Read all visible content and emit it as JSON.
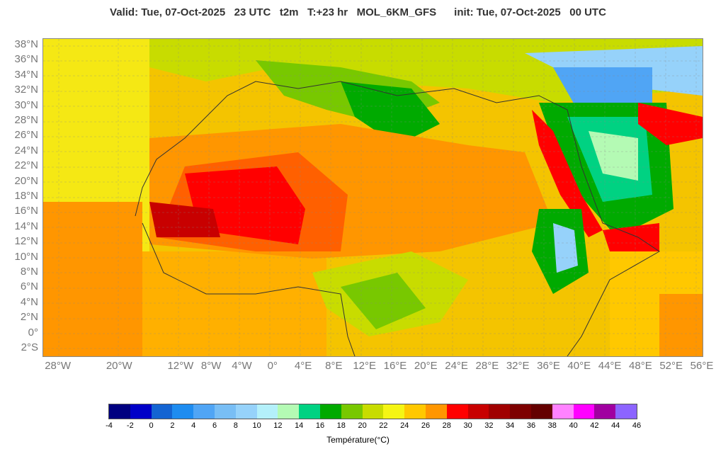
{
  "header": {
    "title": "Valid: Tue, 07-Oct-2025   23 UTC   t2m   T:+23 hr   MOL_6KM_GFS      init: Tue, 07-Oct-2025   00 UTC"
  },
  "map": {
    "lat_labels": [
      "38°N",
      "36°N",
      "34°N",
      "32°N",
      "30°N",
      "28°N",
      "26°N",
      "24°N",
      "22°N",
      "20°N",
      "18°N",
      "16°N",
      "14°N",
      "12°N",
      "10°N",
      "8°N",
      "6°N",
      "4°N",
      "2°N",
      "0°",
      "2°S"
    ],
    "lon_labels": [
      "28°W",
      "20°W",
      "12°W",
      "8°W",
      "4°W",
      "0°",
      "4°E",
      "8°E",
      "12°E",
      "16°E",
      "20°E",
      "24°E",
      "28°E",
      "32°E",
      "36°E",
      "40°E",
      "44°E",
      "48°E",
      "52°E",
      "56°E"
    ],
    "lon_values": [
      -28,
      -20,
      -12,
      -8,
      -4,
      0,
      4,
      8,
      12,
      16,
      20,
      24,
      28,
      32,
      36,
      40,
      44,
      48,
      52,
      56
    ]
  },
  "colorbar": {
    "label": "Température(°C)",
    "ticks": [
      "-4",
      "-2",
      "0",
      "2",
      "4",
      "6",
      "8",
      "10",
      "12",
      "14",
      "16",
      "18",
      "20",
      "22",
      "24",
      "26",
      "28",
      "30",
      "32",
      "34",
      "36",
      "38",
      "40",
      "42",
      "44",
      "46"
    ],
    "colors": [
      "#000080",
      "#0000c8",
      "#1464d2",
      "#1e8cf0",
      "#50a5f5",
      "#78bef5",
      "#96d2fa",
      "#b4f0fa",
      "#b4fab4",
      "#00d282",
      "#00aa00",
      "#78c800",
      "#c8dc00",
      "#f5f514",
      "#ffc800",
      "#ff9600",
      "#ff0000",
      "#c80000",
      "#a00000",
      "#7d0000",
      "#640000",
      "#ff82ff",
      "#ff00ff",
      "#a000a0",
      "#8c64ff"
    ]
  }
}
